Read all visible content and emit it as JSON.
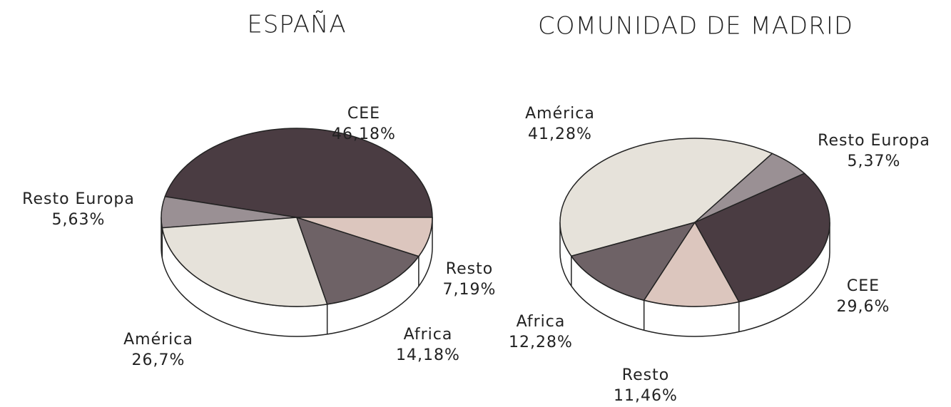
{
  "chart_data": [
    {
      "type": "pie",
      "title": "ESPAÑA",
      "categories": [
        "CEE",
        "Resto Europa",
        "América",
        "Africa",
        "Resto"
      ],
      "values": [
        46.18,
        5.63,
        26.7,
        14.18,
        7.19
      ],
      "value_labels": [
        "46,18%",
        "5,63%",
        "26,7%",
        "14,18%",
        "7,19%"
      ],
      "colors": [
        "#4a3c42",
        "#9a9094",
        "#e6e2da",
        "#6e6266",
        "#dcc6be"
      ]
    },
    {
      "type": "pie",
      "title": "COMUNIDAD DE MADRID",
      "categories": [
        "América",
        "Africa",
        "Resto",
        "CEE",
        "Resto Europa"
      ],
      "values": [
        41.28,
        12.28,
        11.46,
        29.6,
        5.37
      ],
      "value_labels": [
        "41,28%",
        "12,28%",
        "11,46%",
        "29,6%",
        "5,37%"
      ],
      "colors": [
        "#e6e2da",
        "#6e6266",
        "#dcc6be",
        "#4a3c42",
        "#9a9094"
      ]
    }
  ]
}
